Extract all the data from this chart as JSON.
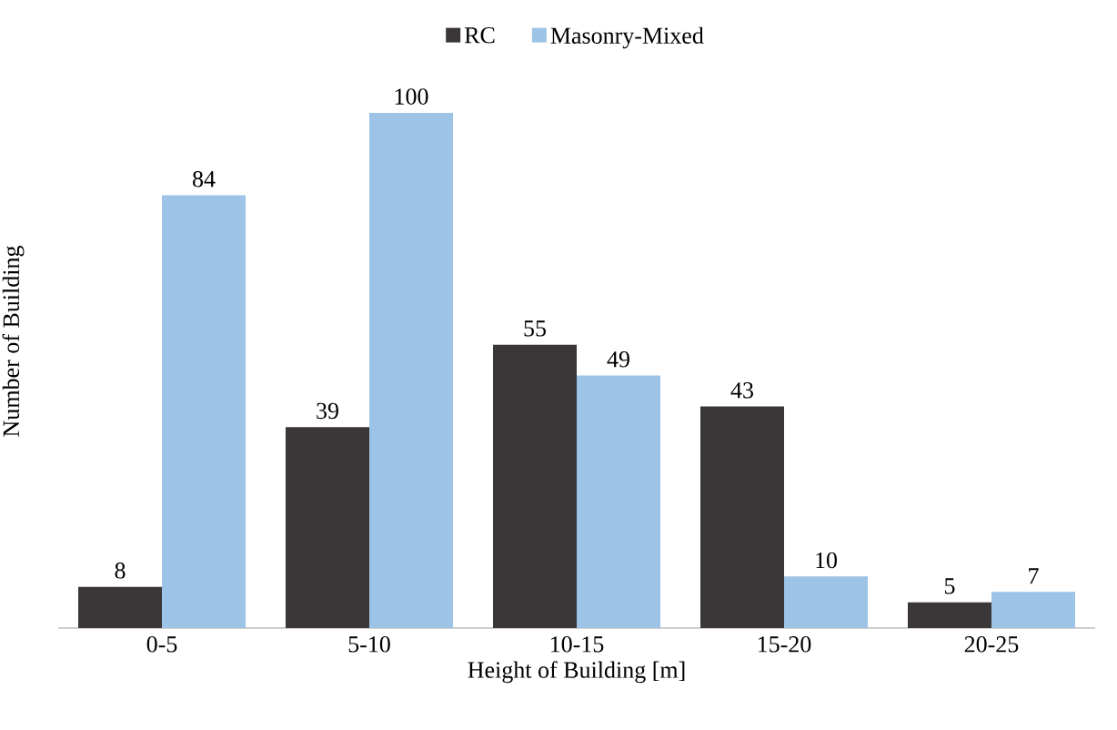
{
  "chart_data": {
    "type": "bar",
    "xlabel": "Height of Building [m]",
    "ylabel": "Number of Building",
    "categories": [
      "0-5",
      "5-10",
      "10-15",
      "15-20",
      "20-25"
    ],
    "series": [
      {
        "name": "RC",
        "color": "#3b3738",
        "values": [
          8,
          39,
          55,
          43,
          5
        ]
      },
      {
        "name": "Masonry-Mixed",
        "color": "#9dc3e6",
        "values": [
          84,
          100,
          49,
          10,
          7
        ]
      }
    ],
    "data_labels": true,
    "legend": "top"
  }
}
